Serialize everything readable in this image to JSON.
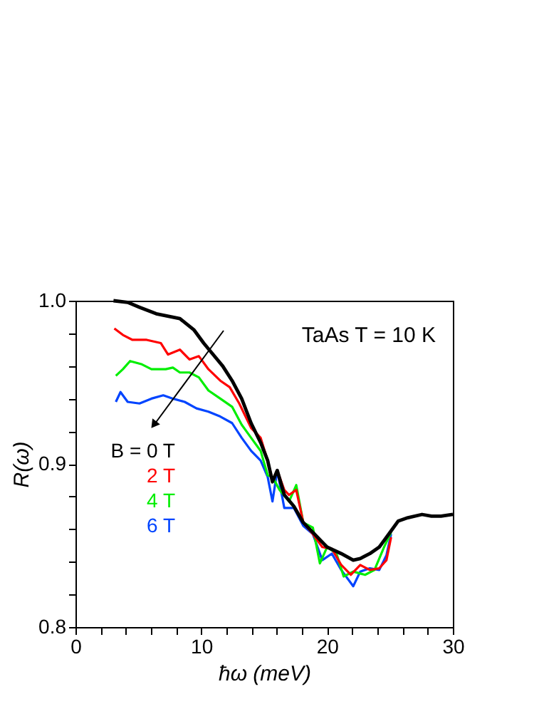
{
  "chart_data": {
    "type": "line",
    "xlabel": "ħω (meV)",
    "ylabel": "R(ω)",
    "xlim": [
      0,
      30
    ],
    "ylim": [
      0.8,
      1.0
    ],
    "xticks": [
      0,
      {
        "value": 2,
        "label": null
      },
      {
        "value": 4,
        "label": null
      },
      {
        "value": 6,
        "label": null
      },
      {
        "value": 8,
        "label": null
      },
      10,
      {
        "value": 12,
        "label": null
      },
      {
        "value": 14,
        "label": null
      },
      {
        "value": 16,
        "label": null
      },
      {
        "value": 18,
        "label": null
      },
      20,
      {
        "value": 22,
        "label": null
      },
      {
        "value": 24,
        "label": null
      },
      {
        "value": 26,
        "label": null
      },
      {
        "value": 28,
        "label": null
      },
      30
    ],
    "yticks": [
      {
        "value": 0.8,
        "label": "0.8"
      },
      {
        "value": 0.82,
        "label": null
      },
      {
        "value": 0.84,
        "label": null
      },
      {
        "value": 0.86,
        "label": null
      },
      {
        "value": 0.88,
        "label": null
      },
      {
        "value": 0.9,
        "label": "0.9"
      },
      {
        "value": 0.92,
        "label": null
      },
      {
        "value": 0.94,
        "label": null
      },
      {
        "value": 0.96,
        "label": null
      },
      {
        "value": 0.98,
        "label": null
      },
      {
        "value": 1.0,
        "label": "1.0"
      }
    ],
    "grid": false,
    "legend": "left",
    "line_style": "solid",
    "annotations": [
      "TaAs T = 10 K"
    ],
    "series": [
      {
        "name": "B = 0 T",
        "color": "#000000",
        "x": [
          3.02,
          4.15,
          5.09,
          6.42,
          8.3,
          9.43,
          10.19,
          10.94,
          11.7,
          12.45,
          13.21,
          13.96,
          14.72,
          15.28,
          15.66,
          16.04,
          16.6,
          17.36,
          18.11,
          18.87,
          20.0,
          21.13,
          22.08,
          22.64,
          23.4,
          24.15,
          24.91,
          25.66,
          26.42,
          27.55,
          28.3,
          29.06,
          30.0
        ],
        "values": [
          1.0,
          0.999,
          0.996,
          0.992,
          0.989,
          0.982,
          0.974,
          0.967,
          0.96,
          0.951,
          0.94,
          0.925,
          0.913,
          0.902,
          0.889,
          0.896,
          0.881,
          0.874,
          0.864,
          0.858,
          0.849,
          0.845,
          0.841,
          0.842,
          0.845,
          0.849,
          0.857,
          0.865,
          0.867,
          0.869,
          0.868,
          0.868,
          0.869
        ]
      },
      {
        "name": "2 T",
        "color": "#ff0000",
        "x": [
          3.09,
          3.77,
          4.53,
          5.66,
          6.79,
          7.36,
          8.3,
          9.06,
          9.81,
          10.57,
          11.51,
          12.26,
          13.02,
          13.96,
          14.72,
          15.28,
          15.66,
          16.04,
          16.6,
          16.98,
          17.55,
          18.11,
          18.87,
          19.62,
          20.38,
          21.13,
          21.89,
          22.64,
          23.4,
          24.15,
          24.72,
          25.09
        ],
        "values": [
          0.983,
          0.979,
          0.976,
          0.976,
          0.974,
          0.967,
          0.97,
          0.964,
          0.966,
          0.958,
          0.951,
          0.947,
          0.937,
          0.922,
          0.916,
          0.902,
          0.89,
          0.896,
          0.884,
          0.881,
          0.884,
          0.864,
          0.857,
          0.849,
          0.848,
          0.838,
          0.832,
          0.838,
          0.835,
          0.836,
          0.841,
          0.855
        ]
      },
      {
        "name": "4 T",
        "color": "#00ee00",
        "x": [
          3.21,
          3.77,
          4.34,
          5.28,
          6.04,
          7.17,
          7.74,
          8.3,
          9.06,
          9.81,
          10.57,
          11.51,
          12.45,
          13.21,
          13.96,
          14.72,
          15.28,
          15.66,
          16.23,
          16.98,
          17.55,
          18.11,
          18.87,
          19.43,
          20.0,
          20.75,
          21.32,
          22.08,
          23.02,
          23.77,
          24.53,
          25.09
        ],
        "values": [
          0.954,
          0.958,
          0.963,
          0.961,
          0.958,
          0.958,
          0.959,
          0.956,
          0.956,
          0.953,
          0.945,
          0.94,
          0.935,
          0.924,
          0.916,
          0.908,
          0.893,
          0.892,
          0.884,
          0.877,
          0.887,
          0.864,
          0.861,
          0.839,
          0.849,
          0.845,
          0.831,
          0.834,
          0.832,
          0.835,
          0.849,
          0.858
        ]
      },
      {
        "name": "6 T",
        "color": "#0044ff",
        "x": [
          3.21,
          3.58,
          4.15,
          5.09,
          6.04,
          6.98,
          7.74,
          8.68,
          9.62,
          10.57,
          11.51,
          12.45,
          13.21,
          13.96,
          14.72,
          15.28,
          15.66,
          16.04,
          16.6,
          17.36,
          18.11,
          18.87,
          19.62,
          20.38,
          21.13,
          22.08,
          22.64,
          23.4,
          24.15,
          24.72,
          25.09
        ],
        "values": [
          0.938,
          0.944,
          0.938,
          0.937,
          0.94,
          0.942,
          0.94,
          0.938,
          0.934,
          0.932,
          0.929,
          0.925,
          0.916,
          0.908,
          0.902,
          0.892,
          0.877,
          0.896,
          0.873,
          0.873,
          0.862,
          0.857,
          0.841,
          0.845,
          0.835,
          0.825,
          0.834,
          0.836,
          0.835,
          0.844,
          0.857
        ]
      }
    ]
  }
}
